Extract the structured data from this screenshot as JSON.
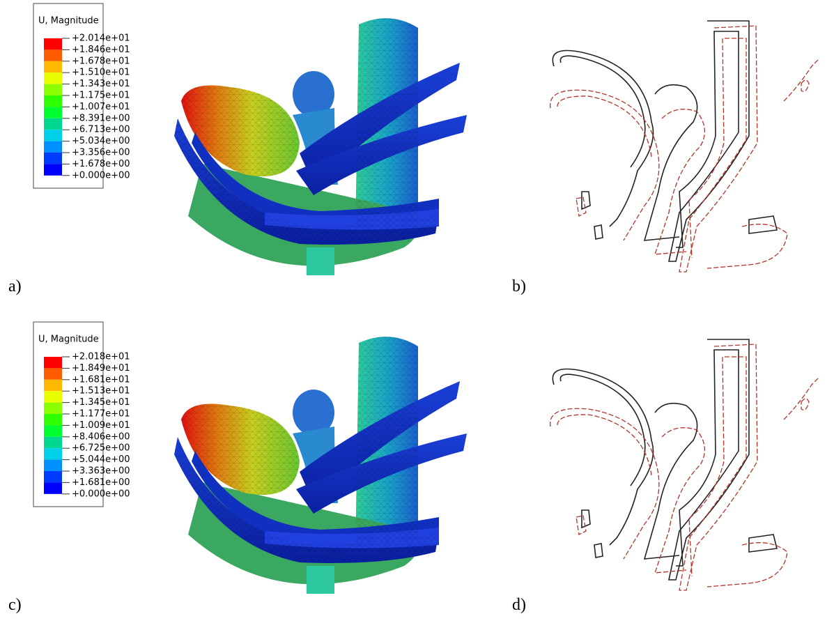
{
  "panels": [
    {
      "label": "a)",
      "legend": {
        "title": "U, Magnitude",
        "values": [
          "+2.014e+01",
          "+1.846e+01",
          "+1.678e+01",
          "+1.510e+01",
          "+1.343e+01",
          "+1.175e+01",
          "+1.007e+01",
          "+8.391e+00",
          "+6.713e+00",
          "+5.034e+00",
          "+3.356e+00",
          "+1.678e+00",
          "+0.000e+00"
        ]
      }
    },
    {
      "label": "b)"
    },
    {
      "label": "c)",
      "legend": {
        "title": "U, Magnitude",
        "values": [
          "+2.018e+01",
          "+1.849e+01",
          "+1.681e+01",
          "+1.513e+01",
          "+1.345e+01",
          "+1.177e+01",
          "+1.009e+01",
          "+8.406e+00",
          "+6.725e+00",
          "+5.044e+00",
          "+3.363e+00",
          "+1.681e+00",
          "+0.000e+00"
        ]
      }
    },
    {
      "label": "d)"
    }
  ]
}
